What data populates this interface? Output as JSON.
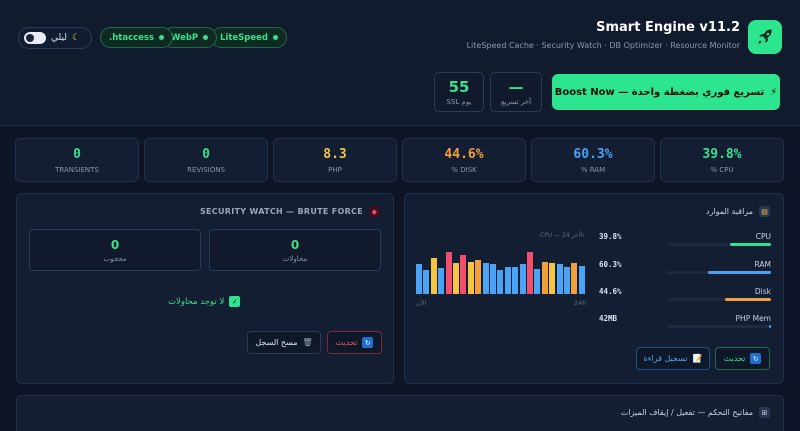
{
  "header": {
    "title": "Smart Engine v11.2",
    "subtitle": "LiteSpeed Cache · Security Watch · DB Optimizer · Resource Monitor",
    "theme_toggle_label": "ليلي",
    "badges": [
      "LiteSpeed",
      "WebP",
      ".htaccess"
    ],
    "boost_label": "Boost Now — تسريع فوري بضغطة واحدة",
    "last_boost": {
      "value": "—",
      "label": "آخر تسريع"
    },
    "ssl_days": {
      "value": "55",
      "label": "SSL يوم"
    }
  },
  "metrics": [
    {
      "value": "39.8%",
      "label": "% CPU",
      "color": "#38e08c"
    },
    {
      "value": "60.3%",
      "label": "% RAM",
      "color": "#4ba3f5"
    },
    {
      "value": "44.6%",
      "label": "% DISK",
      "color": "#f2a03a"
    },
    {
      "value": "8.3",
      "label": "PHP",
      "color": "#f5c542"
    },
    {
      "value": "0",
      "label": "REVISIONS",
      "color": "#38e08c"
    },
    {
      "value": "0",
      "label": "TRANSIENTS",
      "color": "#38e08c"
    }
  ],
  "security_watch": {
    "title": "SECURITY WATCH — BRUTE FORCE",
    "attempts": {
      "value": "0",
      "label": "محاولات"
    },
    "blocked": {
      "value": "0",
      "label": "محجوب"
    },
    "status": "لا توجد محاولات",
    "refresh_label": "تحديث",
    "clear_log_label": "مسح السجل"
  },
  "resource_monitor": {
    "title": "مراقبة الموارد",
    "chart_legend": "CPU — آخر 24h",
    "axis_left": "الآن",
    "axis_right": "24h",
    "resources": [
      {
        "name": "CPU",
        "value": "39.8%",
        "fill": 0.398,
        "color": "#2ee58f"
      },
      {
        "name": "RAM",
        "value": "60.3%",
        "fill": 0.603,
        "color": "#4ba3f5"
      },
      {
        "name": "Disk",
        "value": "44.6%",
        "fill": 0.446,
        "color": "#f2a03a"
      },
      {
        "name": "PHP Mem",
        "value": "42MB",
        "fill": 0.02,
        "color": "#4ba3f5"
      }
    ],
    "refresh_label": "تحديث",
    "log_reading_label": "تسجيل قراءة"
  },
  "controls": {
    "title": "مفاتيح التحكم — تفعيل / إيقاف الميزات"
  },
  "colors": {
    "accent_green": "#2ee58f",
    "blue": "#4ba3f5",
    "orange": "#f2a03a",
    "yellow": "#f5c542",
    "red": "#f0506e"
  }
}
